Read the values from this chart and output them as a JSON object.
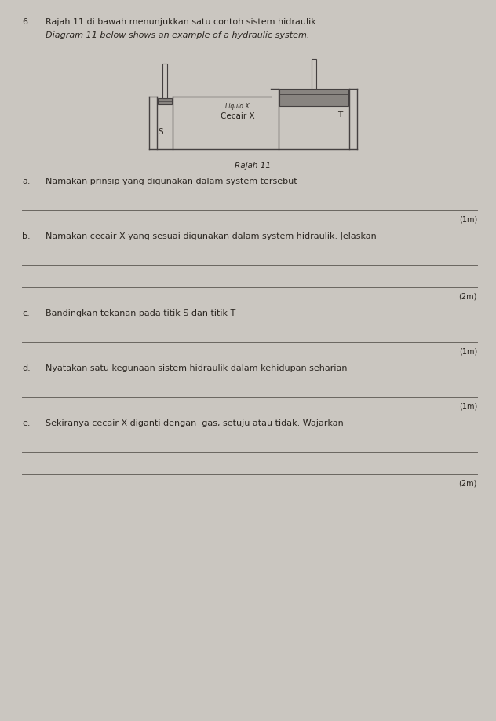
{
  "background_color": "#cac6c0",
  "question_number": "6",
  "title_malay": "Rajah 11 di bawah menunjukkan satu contoh sistem hidraulik.",
  "title_english": "Diagram 11 below shows an example of a hydraulic system.",
  "diagram_caption": "Rajah 11",
  "liquid_label_small": "Liquid X",
  "liquid_label_big": "Cecair X",
  "point_s": "S",
  "point_t": "T",
  "questions": [
    {
      "letter": "a.",
      "text": "Namakan prinsip yang digunakan dalam system tersebut",
      "lines": 1,
      "mark": "(1m)"
    },
    {
      "letter": "b.",
      "text": "Namakan cecair X yang sesuai digunakan dalam system hidraulik. Jelaskan",
      "lines": 2,
      "mark": "(2m)"
    },
    {
      "letter": "c.",
      "text": "Bandingkan tekanan pada titik S dan titik T",
      "lines": 1,
      "mark": "(1m)"
    },
    {
      "letter": "d.",
      "text": "Nyatakan satu kegunaan sistem hidraulik dalam kehidupan seharian",
      "lines": 1,
      "mark": "(1m)"
    },
    {
      "letter": "e.",
      "text": "Sekiranya cecair X diganti dengan  gas, setuju atau tidak. Wajarkan",
      "lines": 2,
      "mark": "(2m)"
    }
  ],
  "text_color": "#2a2520",
  "line_color": "#6a6560",
  "diagram_line_color": "#444040",
  "diagram_fill": "#c8c4be",
  "piston_fill": "#888480"
}
